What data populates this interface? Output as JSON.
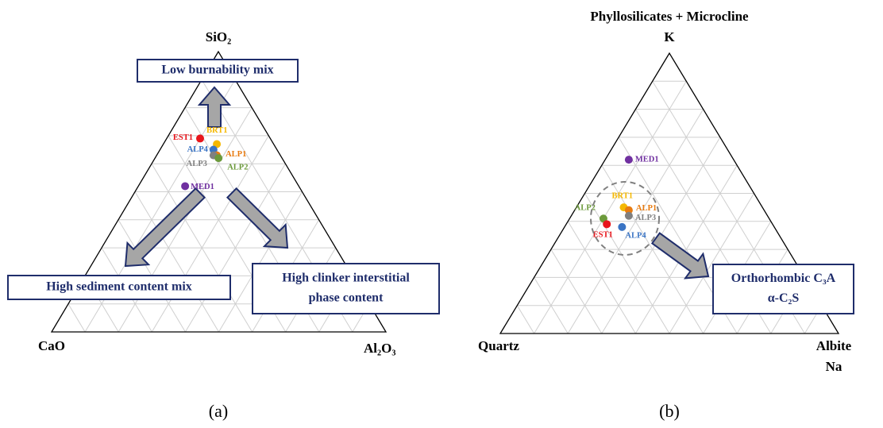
{
  "chart_data": [
    {
      "type": "ternary",
      "axes": [
        {
          "label": [
            "SiO₂"
          ]
        },
        {
          "label": [
            "CaO"
          ]
        },
        {
          "label": [
            "Al₂O₃"
          ]
        }
      ],
      "grid": true,
      "gridticks": [
        10,
        20,
        30,
        40,
        50,
        60,
        70,
        80,
        90
      ],
      "series": [
        {
          "name": "EST1",
          "color": "#e8151b",
          "values": [
            69,
            21,
            10
          ]
        },
        {
          "name": "BRT1",
          "color": "#f5b800",
          "values": [
            67,
            17,
            16
          ]
        },
        {
          "name": "ALP4",
          "color": "#3a74c4",
          "values": [
            65,
            19,
            16
          ]
        },
        {
          "name": "ALP1",
          "color": "#e87b10",
          "values": [
            63,
            19,
            18
          ]
        },
        {
          "name": "ALP3",
          "color": "#808080",
          "values": [
            63,
            20,
            17
          ]
        },
        {
          "name": "ALP2",
          "color": "#6c9a3b",
          "values": [
            62,
            19,
            19
          ]
        },
        {
          "name": "MED1",
          "color": "#7030a0",
          "values": [
            52,
            34,
            14
          ]
        }
      ],
      "annotations": [
        [
          "Low burnability mix"
        ],
        [
          "High sediment content mix"
        ],
        [
          "High clinker interstitial",
          "phase content"
        ]
      ],
      "caption": "(a)"
    },
    {
      "type": "ternary",
      "axes": [
        {
          "label": [
            "Phyllosilicates + Microcline",
            "K"
          ]
        },
        {
          "label": [
            "Quartz"
          ]
        },
        {
          "label": [
            "Albite",
            "Na"
          ]
        }
      ],
      "grid": true,
      "gridticks": [
        10,
        20,
        30,
        40,
        50,
        60,
        70,
        80,
        90
      ],
      "series": [
        {
          "name": "MED1",
          "color": "#7030a0",
          "values": [
            62,
            31,
            7
          ]
        },
        {
          "name": "BRT1",
          "color": "#f5b800",
          "values": [
            45,
            41,
            14
          ]
        },
        {
          "name": "ALP1",
          "color": "#e87b10",
          "values": [
            44,
            40,
            16
          ]
        },
        {
          "name": "ALP2",
          "color": "#6c9a3b",
          "values": [
            41,
            49,
            10
          ]
        },
        {
          "name": "ALP3",
          "color": "#808080",
          "values": [
            42,
            41,
            17
          ]
        },
        {
          "name": "EST1",
          "color": "#e8151b",
          "values": [
            39,
            49,
            12
          ]
        },
        {
          "name": "ALP4",
          "color": "#3a74c4",
          "values": [
            38,
            45,
            17
          ]
        }
      ],
      "annotations": [
        [
          "Orthorhombic C₃A",
          "α-C₂S"
        ]
      ],
      "caption": "(b)"
    }
  ]
}
